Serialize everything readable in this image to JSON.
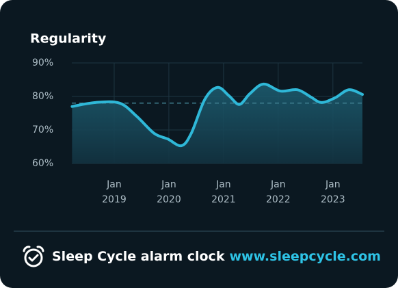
{
  "chart_data": {
    "type": "line",
    "title": "Regularity",
    "color": "#2fb8d8",
    "x": [
      2018.23,
      2018.66,
      2019.1,
      2019.41,
      2019.73,
      2019.98,
      2020.23,
      2020.41,
      2020.66,
      2020.89,
      2021.1,
      2021.29,
      2021.48,
      2021.73,
      2022.04,
      2022.35,
      2022.6,
      2022.79,
      2023.04,
      2023.29,
      2023.54
    ],
    "values": [
      77.0,
      78.2,
      78.0,
      74.1,
      69.0,
      67.3,
      65.3,
      69.0,
      79.2,
      82.7,
      80.2,
      77.6,
      80.8,
      83.7,
      81.6,
      82.0,
      79.8,
      78.2,
      79.6,
      82.0,
      80.6
    ],
    "reference": 78,
    "xlim": [
      2018.225,
      2023.54
    ],
    "xticks": [
      {
        "value": 2019,
        "label": "Jan 2019"
      },
      {
        "value": 2020,
        "label": "Jan 2020"
      },
      {
        "value": 2021,
        "label": "Jan 2021"
      },
      {
        "value": 2022,
        "label": "Jan 2022"
      },
      {
        "value": 2023,
        "label": "Jan 2023"
      }
    ],
    "ylim": [
      60,
      90
    ],
    "yticks": [
      {
        "value": 60,
        "label": "60%"
      },
      {
        "value": 70,
        "label": "70%"
      },
      {
        "value": 80,
        "label": "80%"
      },
      {
        "value": 90,
        "label": "90%"
      }
    ],
    "grid": true
  },
  "footer": {
    "brand": "Sleep Cycle alarm clock",
    "url": "www.sleepcycle.com"
  }
}
